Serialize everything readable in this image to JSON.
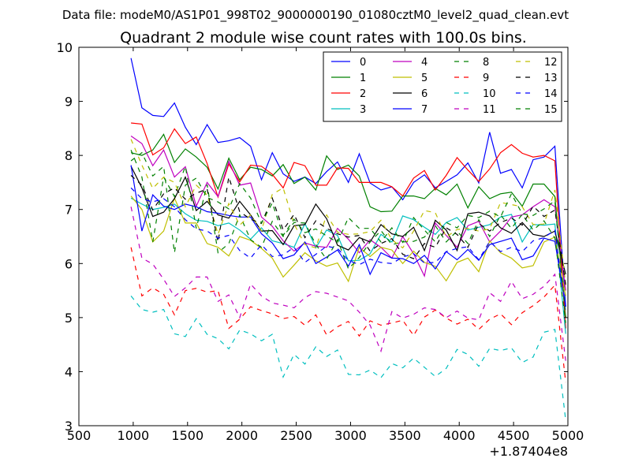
{
  "figure": {
    "suptitle": "Data file: modeM0/AS1P01_998T02_9000000190_01080cztM0_level2_quad_clean.evt",
    "title": "Quadrant 2 module wise count rates with 100.0s bins.",
    "offset_label": "+1.87404e8"
  },
  "chart_data": {
    "type": "line",
    "title": "Quadrant 2 module wise count rates with 100.0s bins.",
    "xlim": [
      500,
      5000
    ],
    "ylim": [
      3,
      10
    ],
    "x_offset": 187404000,
    "xticks": [
      "500",
      "1000",
      "1500",
      "2000",
      "2500",
      "3000",
      "3500",
      "4000",
      "4500",
      "5000"
    ],
    "yticks": [
      "3",
      "4",
      "5",
      "6",
      "7",
      "8",
      "9",
      "10"
    ],
    "grid": false,
    "legend": {
      "placement": "top-right",
      "columns": 4
    },
    "x": [
      980,
      1080,
      1180,
      1280,
      1380,
      1480,
      1580,
      1680,
      1780,
      1880,
      1980,
      2080,
      2180,
      2280,
      2380,
      2480,
      2580,
      2680,
      2780,
      2880,
      2980,
      3080,
      3180,
      3280,
      3380,
      3480,
      3580,
      3680,
      3780,
      3880,
      3980,
      4080,
      4180,
      4280,
      4380,
      4480,
      4580,
      4680,
      4780,
      4880,
      4980
    ],
    "series": [
      {
        "name": "0",
        "color": "#0000ff",
        "dash": "solid",
        "values": [
          9.8,
          8.88,
          8.74,
          8.72,
          8.97,
          8.52,
          8.2,
          8.57,
          8.24,
          8.27,
          8.33,
          8.17,
          7.55,
          8.05,
          7.66,
          7.52,
          7.6,
          7.48,
          7.7,
          7.88,
          7.5,
          8.03,
          7.49,
          7.36,
          7.42,
          7.18,
          7.5,
          7.64,
          7.4,
          7.52,
          7.64,
          7.86,
          7.49,
          8.43,
          7.67,
          7.74,
          7.4,
          7.92,
          7.97,
          8.17,
          5.2
        ]
      },
      {
        "name": "1",
        "color": "#008000",
        "dash": "solid",
        "values": [
          8.05,
          8.0,
          8.1,
          8.39,
          7.87,
          8.12,
          7.97,
          7.78,
          7.38,
          7.95,
          7.55,
          7.78,
          7.74,
          7.62,
          7.83,
          7.48,
          7.6,
          7.36,
          7.99,
          7.74,
          7.82,
          7.62,
          7.05,
          6.96,
          6.97,
          7.25,
          7.25,
          7.2,
          7.39,
          7.27,
          7.47,
          7.03,
          7.42,
          7.2,
          7.29,
          7.32,
          7.06,
          7.47,
          7.47,
          7.24,
          5.0
        ]
      },
      {
        "name": "2",
        "color": "#ff0000",
        "dash": "solid",
        "values": [
          8.6,
          8.58,
          8.01,
          8.14,
          8.49,
          8.22,
          8.34,
          7.85,
          7.23,
          7.84,
          7.51,
          7.82,
          7.8,
          7.65,
          7.4,
          7.87,
          7.81,
          7.45,
          7.45,
          7.77,
          7.76,
          7.5,
          7.5,
          7.5,
          7.42,
          7.25,
          7.58,
          7.72,
          7.36,
          7.63,
          7.96,
          7.73,
          7.52,
          7.75,
          8.05,
          8.2,
          8.04,
          7.97,
          8.0,
          7.9,
          4.8
        ]
      },
      {
        "name": "3",
        "color": "#00bfbf",
        "dash": "solid",
        "values": [
          7.21,
          7.1,
          7.0,
          7.04,
          7.1,
          6.92,
          6.8,
          6.78,
          6.7,
          6.75,
          6.62,
          6.45,
          6.66,
          6.42,
          6.37,
          6.3,
          6.74,
          6.29,
          6.62,
          6.52,
          6.05,
          6.06,
          6.18,
          6.54,
          6.4,
          6.88,
          6.81,
          6.67,
          6.54,
          6.76,
          6.85,
          6.62,
          6.67,
          6.72,
          6.86,
          6.91,
          6.4,
          6.72,
          6.71,
          6.73,
          4.7
        ]
      },
      {
        "name": "4",
        "color": "#bf00bf",
        "dash": "solid",
        "values": [
          8.36,
          8.22,
          7.81,
          8.1,
          7.6,
          7.79,
          7.06,
          7.5,
          7.24,
          7.89,
          7.45,
          7.49,
          6.86,
          6.69,
          6.42,
          6.23,
          6.38,
          6.32,
          6.3,
          6.65,
          6.45,
          6.2,
          6.44,
          6.3,
          6.1,
          6.5,
          6.18,
          5.77,
          6.75,
          6.52,
          6.3,
          6.7,
          6.78,
          6.4,
          6.6,
          6.86,
          6.9,
          7.05,
          7.18,
          7.05,
          5.5
        ]
      },
      {
        "name": "5",
        "color": "#bfbf00",
        "dash": "solid",
        "values": [
          7.25,
          7.0,
          6.4,
          6.6,
          7.21,
          6.75,
          6.75,
          6.37,
          6.3,
          6.14,
          6.5,
          6.43,
          6.28,
          6.1,
          5.75,
          5.97,
          6.2,
          6.05,
          5.95,
          6.01,
          5.67,
          6.3,
          6.13,
          6.3,
          6.25,
          6.0,
          6.23,
          6.02,
          5.95,
          5.68,
          6.02,
          6.1,
          5.85,
          6.42,
          6.2,
          6.1,
          5.92,
          5.96,
          6.4,
          6.49,
          5.4
        ]
      },
      {
        "name": "6",
        "color": "#000000",
        "dash": "solid",
        "values": [
          7.8,
          7.4,
          6.87,
          6.95,
          7.2,
          7.6,
          6.98,
          7.15,
          6.9,
          6.84,
          7.15,
          6.9,
          6.6,
          6.61,
          6.35,
          6.7,
          6.72,
          7.1,
          6.83,
          6.34,
          6.25,
          6.48,
          6.4,
          6.72,
          6.55,
          6.5,
          6.67,
          6.24,
          6.8,
          6.62,
          6.24,
          6.92,
          6.95,
          6.88,
          6.66,
          6.56,
          6.76,
          6.54,
          6.5,
          6.6,
          5.8
        ]
      },
      {
        "name": "7",
        "color": "#0000ff",
        "dash": "solid",
        "values": [
          7.82,
          6.6,
          7.27,
          7.06,
          7.0,
          7.1,
          7.05,
          6.96,
          6.93,
          6.89,
          6.86,
          6.86,
          6.55,
          6.38,
          6.09,
          6.16,
          6.4,
          6.0,
          6.12,
          6.25,
          5.95,
          6.35,
          5.8,
          6.2,
          6.1,
          6.09,
          6.0,
          6.15,
          5.9,
          6.22,
          6.07,
          6.26,
          6.06,
          6.35,
          6.41,
          6.47,
          6.07,
          6.14,
          6.47,
          6.41,
          5.2
        ]
      },
      {
        "name": "8",
        "color": "#008000",
        "dash": "dashed",
        "values": [
          8.1,
          7.6,
          6.4,
          7.6,
          7.24,
          7.8,
          6.65,
          7.46,
          6.2,
          6.37,
          6.9,
          6.44,
          6.3,
          6.78,
          6.5,
          6.76,
          6.75,
          6.35,
          6.08,
          6.44,
          5.9,
          6.11,
          6.4,
          6.61,
          6.35,
          6.4,
          6.41,
          6.49,
          6.7,
          6.4,
          6.6,
          6.37,
          6.81,
          6.5,
          6.9,
          6.65,
          6.91,
          6.62,
          6.79,
          6.47,
          4.9
        ]
      },
      {
        "name": "9",
        "color": "#ff0000",
        "dash": "dashed",
        "values": [
          6.3,
          5.4,
          5.55,
          5.43,
          5.05,
          5.5,
          5.54,
          5.47,
          5.5,
          4.8,
          4.97,
          5.2,
          5.13,
          5.07,
          4.98,
          5.02,
          4.86,
          5.05,
          4.68,
          4.83,
          4.93,
          4.66,
          4.94,
          4.86,
          4.9,
          4.95,
          4.67,
          5.01,
          5.14,
          4.99,
          4.88,
          4.97,
          4.78,
          4.97,
          5.07,
          4.87,
          5.09,
          5.22,
          5.38,
          5.6,
          3.8
        ]
      },
      {
        "name": "10",
        "color": "#00bfbf",
        "dash": "dashed",
        "values": [
          5.4,
          5.15,
          5.1,
          5.15,
          4.7,
          4.65,
          4.98,
          4.69,
          4.61,
          4.42,
          4.77,
          4.7,
          4.57,
          4.69,
          3.9,
          4.32,
          4.14,
          4.46,
          4.28,
          4.4,
          3.95,
          3.94,
          4.03,
          3.89,
          4.15,
          4.07,
          4.25,
          4.08,
          3.91,
          4.06,
          4.41,
          4.32,
          4.1,
          4.43,
          4.39,
          4.44,
          4.17,
          4.27,
          4.73,
          4.78,
          3.1
        ]
      },
      {
        "name": "11",
        "color": "#bf00bf",
        "dash": "dashed",
        "values": [
          7.05,
          6.1,
          5.99,
          5.71,
          5.39,
          5.55,
          5.75,
          5.75,
          5.3,
          5.42,
          5.0,
          5.62,
          5.4,
          5.27,
          5.23,
          5.18,
          5.37,
          5.48,
          5.45,
          5.38,
          5.31,
          5.1,
          4.86,
          4.38,
          5.11,
          4.99,
          5.06,
          5.18,
          5.15,
          5.0,
          5.12,
          4.99,
          4.96,
          5.46,
          5.3,
          5.67,
          5.35,
          5.43,
          5.58,
          5.8,
          4.2
        ]
      },
      {
        "name": "12",
        "color": "#bfbf00",
        "dash": "dashed",
        "values": [
          8.3,
          7.82,
          7.39,
          7.6,
          7.5,
          7.05,
          7.45,
          7.27,
          6.54,
          7.11,
          6.71,
          6.9,
          6.61,
          7.28,
          7.4,
          6.73,
          6.35,
          6.29,
          6.9,
          6.58,
          6.54,
          6.55,
          6.59,
          6.8,
          6.44,
          6.29,
          6.6,
          6.98,
          6.94,
          6.49,
          6.63,
          6.65,
          6.6,
          6.64,
          7.13,
          7.09,
          7.05,
          6.72,
          6.73,
          7.36,
          5.6
        ]
      },
      {
        "name": "13",
        "color": "#000000",
        "dash": "dashed",
        "values": [
          7.63,
          7.45,
          6.99,
          7.29,
          7.4,
          7.19,
          7.3,
          7.38,
          6.4,
          7.6,
          6.96,
          6.82,
          6.74,
          7.21,
          6.62,
          6.91,
          6.48,
          6.79,
          6.65,
          6.55,
          6.49,
          6.52,
          6.23,
          6.37,
          6.46,
          6.17,
          6.09,
          6.37,
          6.3,
          6.66,
          6.54,
          6.3,
          6.74,
          6.6,
          6.76,
          6.84,
          6.71,
          7.06,
          6.87,
          6.99,
          5.6
        ]
      },
      {
        "name": "14",
        "color": "#0000ff",
        "dash": "dashed",
        "values": [
          7.4,
          7.2,
          7.14,
          7.2,
          7.05,
          6.81,
          6.64,
          6.6,
          6.47,
          6.52,
          6.24,
          6.1,
          6.35,
          6.13,
          6.16,
          6.3,
          6.02,
          6.17,
          6.32,
          6.28,
          6.06,
          5.98,
          6.08,
          6.02,
          6.0,
          6.12,
          6.18,
          6.01,
          6.02,
          6.22,
          6.28,
          6.31,
          6.07,
          6.41,
          6.22,
          6.3,
          6.22,
          6.42,
          6.48,
          6.62,
          5.1
        ]
      },
      {
        "name": "15",
        "color": "#008000",
        "dash": "dashed",
        "values": [
          7.9,
          8.05,
          7.62,
          7.8,
          6.2,
          7.45,
          7.58,
          7.22,
          7.14,
          7.01,
          7.48,
          7.21,
          6.75,
          7.12,
          6.52,
          6.82,
          6.57,
          6.64,
          6.51,
          6.39,
          6.85,
          6.65,
          6.65,
          6.4,
          6.66,
          6.39,
          6.85,
          6.62,
          6.4,
          6.76,
          6.66,
          6.89,
          6.85,
          6.97,
          6.86,
          7.29,
          6.92,
          6.89,
          7.01,
          7.16,
          5.0
        ]
      }
    ]
  }
}
